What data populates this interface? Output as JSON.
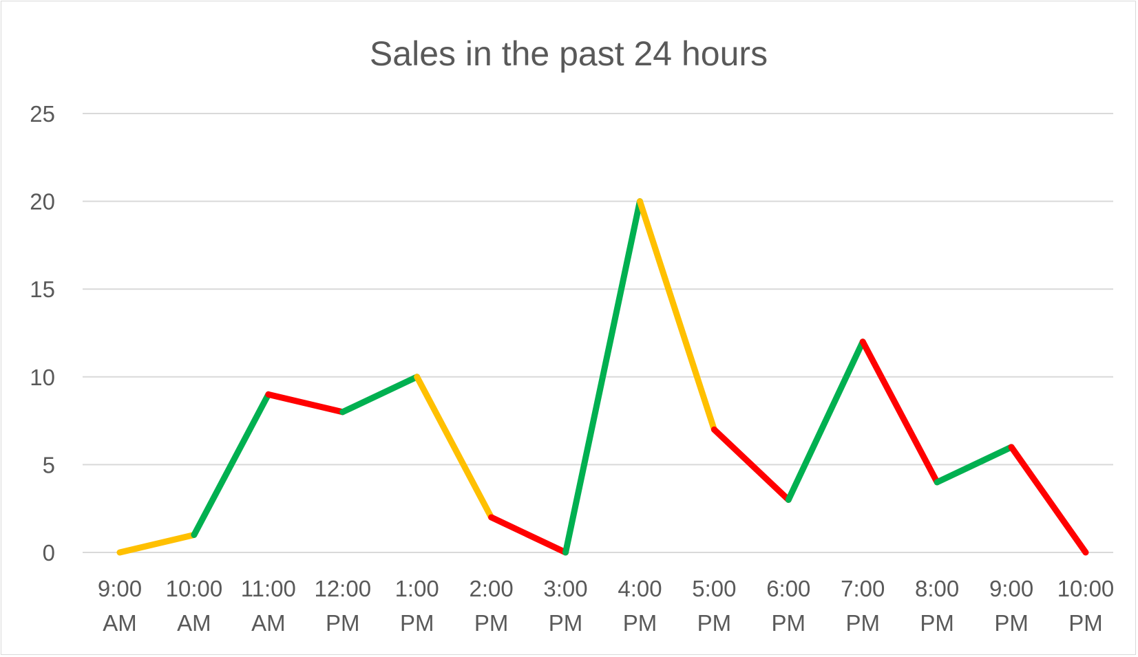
{
  "chart_data": {
    "type": "line",
    "title": "Sales in the past 24 hours",
    "xlabel": "",
    "ylabel": "",
    "ylim": [
      0,
      25
    ],
    "yticks": [
      "0",
      "5",
      "10",
      "15",
      "20",
      "25"
    ],
    "categories": [
      [
        "9:00",
        "AM"
      ],
      [
        "10:00",
        "AM"
      ],
      [
        "11:00",
        "AM"
      ],
      [
        "12:00",
        "PM"
      ],
      [
        "1:00",
        "PM"
      ],
      [
        "2:00",
        "PM"
      ],
      [
        "3:00",
        "PM"
      ],
      [
        "4:00",
        "PM"
      ],
      [
        "5:00",
        "PM"
      ],
      [
        "6:00",
        "PM"
      ],
      [
        "7:00",
        "PM"
      ],
      [
        "8:00",
        "PM"
      ],
      [
        "9:00",
        "PM"
      ],
      [
        "10:00",
        "PM"
      ]
    ],
    "values": [
      0,
      1,
      9,
      8,
      10,
      2,
      0,
      20,
      7,
      3,
      12,
      4,
      6,
      0
    ],
    "segment_colors": [
      "#FFC000",
      "#00B050",
      "#FF0000",
      "#00B050",
      "#FFC000",
      "#FF0000",
      "#00B050",
      "#FFC000",
      "#FF0000",
      "#00B050",
      "#FF0000",
      "#00B050",
      "#FF0000"
    ],
    "grid": true,
    "legend": "none"
  }
}
